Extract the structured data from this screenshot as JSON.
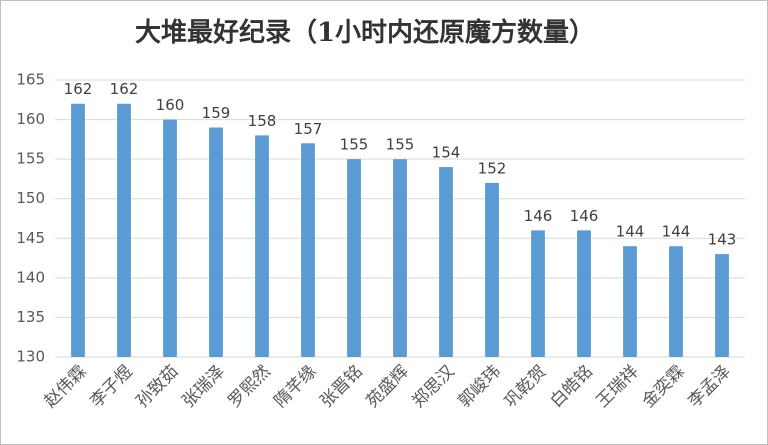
{
  "chart_data": {
    "type": "bar",
    "title": "大堆最好纪录（1小时内还原魔方数量）",
    "categories": [
      "赵伟霖",
      "李子煜",
      "孙致茹",
      "张瑞泽",
      "罗熙然",
      "隋芊缘",
      "张晋铭",
      "苑盛辉",
      "郑思汉",
      "郭峻玮",
      "巩乾贺",
      "白皓铭",
      "王瑞祥",
      "金奕霖",
      "李孟泽"
    ],
    "values": [
      162,
      162,
      160,
      159,
      158,
      157,
      155,
      155,
      154,
      152,
      146,
      146,
      144,
      144,
      143
    ],
    "color": "#5b9bd5",
    "ylim": [
      130,
      165
    ],
    "yticks": [
      130,
      135,
      140,
      145,
      150,
      155,
      160,
      165
    ],
    "grid": true
  }
}
